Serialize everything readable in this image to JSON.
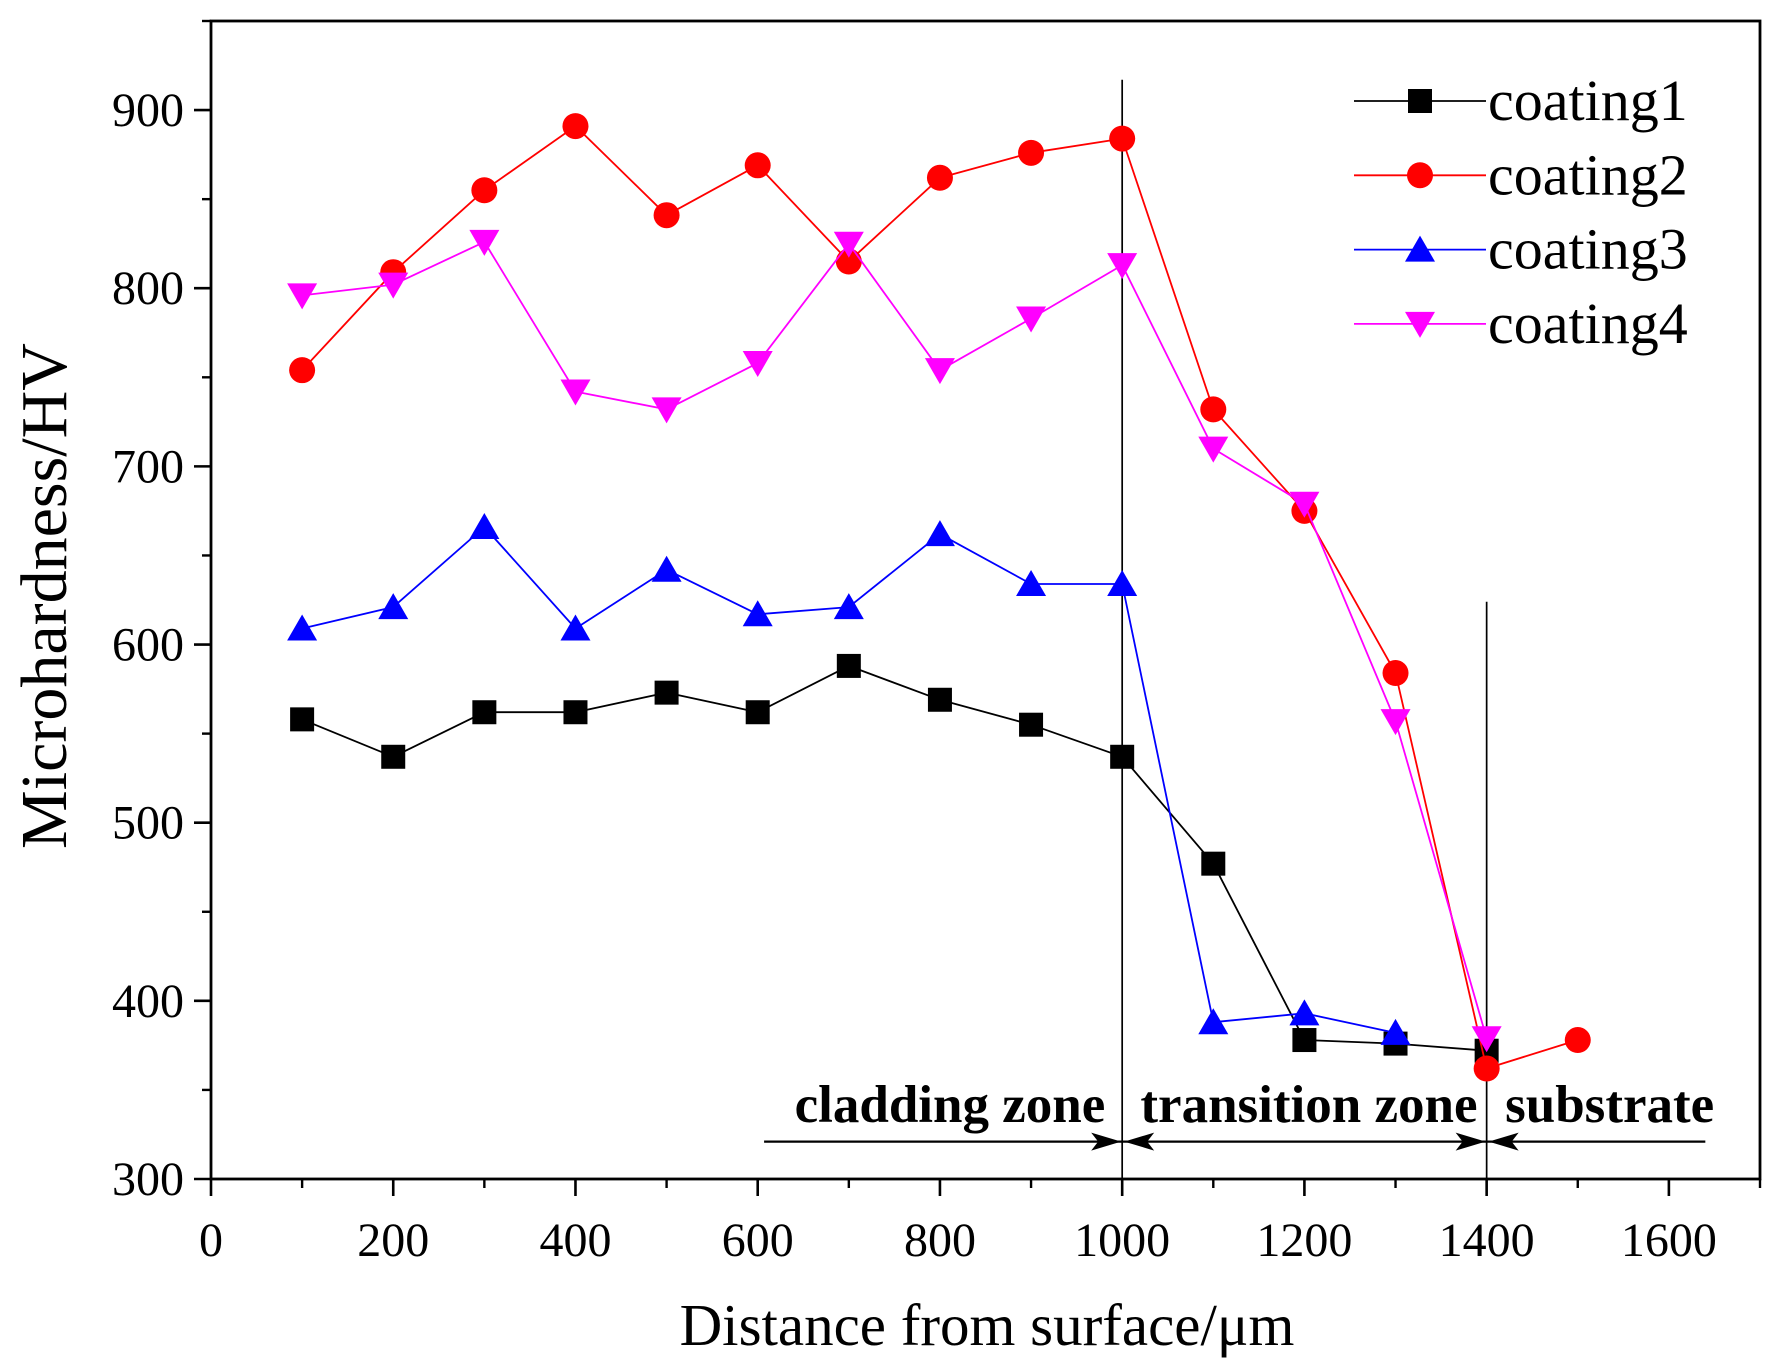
{
  "chart_data": {
    "type": "line",
    "xlabel": "Distance from surface/μm",
    "ylabel": "Microhardness/HV",
    "xlim": [
      0,
      1700
    ],
    "ylim": [
      300,
      950
    ],
    "xticks": [
      0,
      200,
      400,
      600,
      800,
      1000,
      1200,
      1400,
      1600
    ],
    "yticks": [
      300,
      400,
      500,
      600,
      700,
      800,
      900
    ],
    "grid": false,
    "legend_position": "top-right",
    "series": [
      {
        "name": "coating1",
        "color": "#000000",
        "marker": "square",
        "x": [
          100,
          200,
          300,
          400,
          500,
          600,
          700,
          800,
          900,
          1000,
          1100,
          1200,
          1300,
          1400
        ],
        "y": [
          558,
          537,
          562,
          562,
          573,
          562,
          588,
          569,
          555,
          537,
          477,
          378,
          376,
          372
        ]
      },
      {
        "name": "coating2",
        "color": "#FF0000",
        "marker": "circle",
        "x": [
          100,
          200,
          300,
          400,
          500,
          600,
          700,
          800,
          900,
          1000,
          1100,
          1200,
          1300,
          1400,
          1500
        ],
        "y": [
          754,
          809,
          855,
          891,
          841,
          869,
          815,
          862,
          876,
          884,
          732,
          675,
          584,
          362,
          378
        ]
      },
      {
        "name": "coating3",
        "color": "#0000FF",
        "marker": "triangle-up",
        "x": [
          100,
          200,
          300,
          400,
          500,
          600,
          700,
          800,
          900,
          1000,
          1100,
          1200,
          1300
        ],
        "y": [
          609,
          621,
          666,
          609,
          642,
          617,
          621,
          662,
          634,
          634,
          388,
          393,
          382
        ]
      },
      {
        "name": "coating4",
        "color": "#FF00FF",
        "marker": "triangle-down",
        "x": [
          100,
          200,
          300,
          400,
          500,
          600,
          700,
          800,
          900,
          1000,
          1100,
          1200,
          1300,
          1400
        ],
        "y": [
          796,
          802,
          826,
          742,
          732,
          758,
          825,
          754,
          783,
          813,
          710,
          679,
          557,
          379
        ]
      }
    ],
    "zone_boundaries": [
      1000,
      1400
    ],
    "zones": [
      "cladding zone",
      "transition zone",
      "substrate"
    ]
  }
}
